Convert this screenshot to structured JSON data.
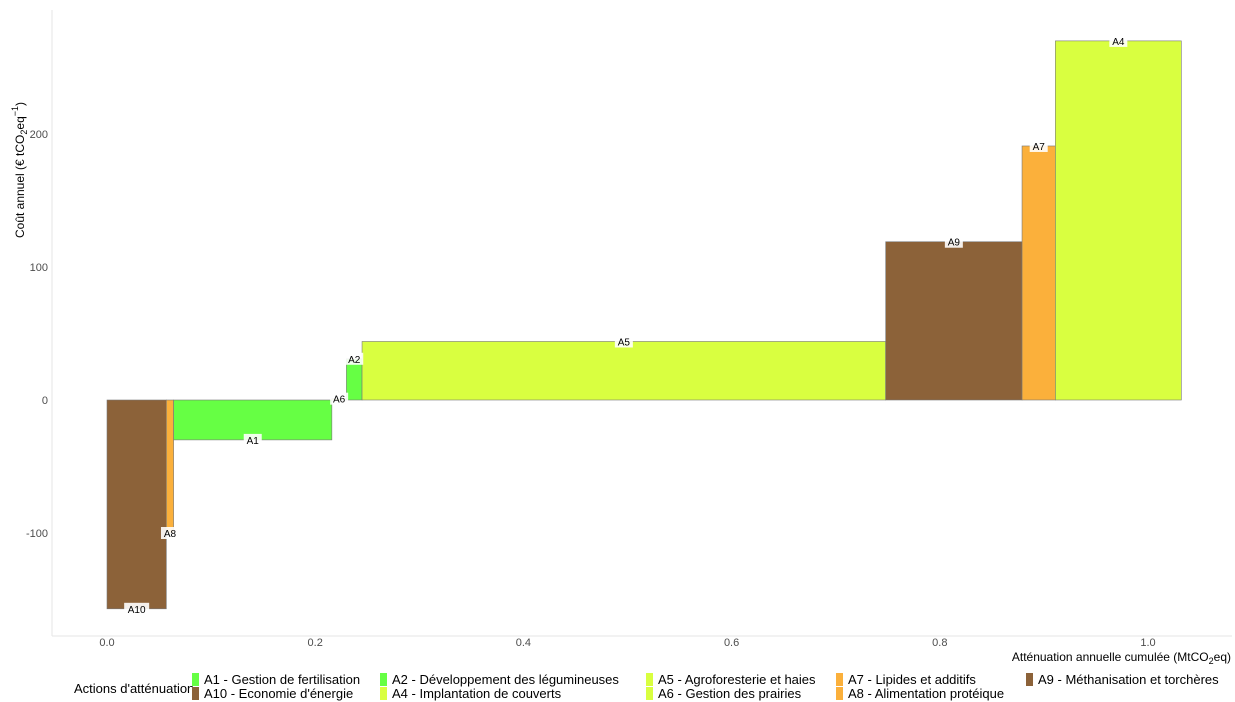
{
  "chart_data": {
    "type": "bar",
    "subtype": "marginal-abatement-cost-curve",
    "ylabel_text": "Coût annuel (€ tCO",
    "ylabel_sub": "2",
    "ylabel_mid": "eq",
    "ylabel_sup": "−1",
    "ylabel_end": ")",
    "xlabel_text": "Atténuation annuelle cumulée (MtCO",
    "xlabel_sub": "2",
    "xlabel_end": "eq)",
    "xlim": [
      -0.05,
      1.07
    ],
    "ylim": [
      -178,
      288
    ],
    "x_ticks": [
      0.0,
      0.2,
      0.4,
      0.6,
      0.8,
      1.0
    ],
    "x_tick_labels": [
      "0.0",
      "0.2",
      "0.4",
      "0.6",
      "0.8",
      "1.0"
    ],
    "y_ticks": [
      -100,
      0,
      100,
      200
    ],
    "y_tick_labels": [
      "-100",
      "0",
      "100",
      "200"
    ],
    "grid": false,
    "legend_placement": "bottom",
    "legend_title": "Actions d'atténuation",
    "bars": [
      {
        "label": "A10",
        "x_start": 0.0,
        "x_end": 0.057,
        "value": -157,
        "color": "#8C6239"
      },
      {
        "label": "A8",
        "x_start": 0.057,
        "x_end": 0.064,
        "value": -100,
        "color": "#FBB03B"
      },
      {
        "label": "A1",
        "x_start": 0.064,
        "x_end": 0.216,
        "value": -30,
        "color": "#66FF44"
      },
      {
        "label": "A6",
        "x_start": 0.216,
        "x_end": 0.23,
        "value": 1,
        "color": "#D9FF40"
      },
      {
        "label": "A2",
        "x_start": 0.23,
        "x_end": 0.245,
        "value": 31,
        "color": "#66FF44"
      },
      {
        "label": "A5",
        "x_start": 0.245,
        "x_end": 0.748,
        "value": 44,
        "color": "#D9FF40"
      },
      {
        "label": "A9",
        "x_start": 0.748,
        "x_end": 0.879,
        "value": 119,
        "color": "#8C6239"
      },
      {
        "label": "A7",
        "x_start": 0.879,
        "x_end": 0.911,
        "value": 191,
        "color": "#FBB03B"
      },
      {
        "label": "A4",
        "x_start": 0.911,
        "x_end": 1.032,
        "value": 270,
        "color": "#D9FF40"
      }
    ],
    "legend": [
      {
        "name": "A1 - Gestion de fertilisation",
        "color": "#66FF44"
      },
      {
        "name": "A10 - Economie d'énergie",
        "color": "#8C6239"
      },
      {
        "name": "A2 - Développement des légumineuses",
        "color": "#66FF44"
      },
      {
        "name": "A4 - Implantation de couverts",
        "color": "#D9FF40"
      },
      {
        "name": "A5 - Agroforesterie et haies",
        "color": "#D9FF40"
      },
      {
        "name": "A6 - Gestion des prairies",
        "color": "#D9FF40"
      },
      {
        "name": "A7 - Lipides et additifs",
        "color": "#FBB03B"
      },
      {
        "name": "A8 - Alimentation protéique",
        "color": "#FBB03B"
      },
      {
        "name": "A9 - Méthanisation et torchères",
        "color": "#8C6239"
      }
    ]
  }
}
